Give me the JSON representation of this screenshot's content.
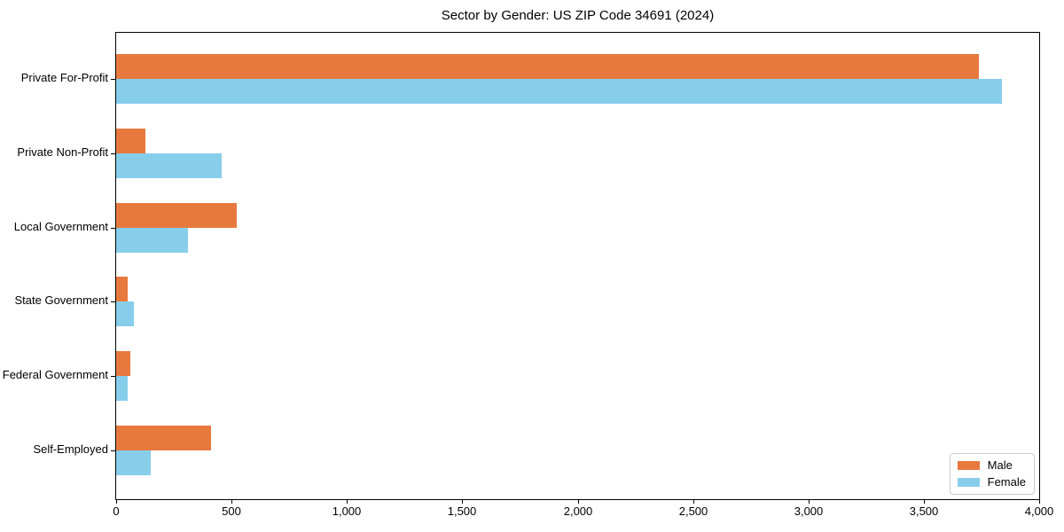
{
  "chart_data": {
    "type": "bar",
    "orientation": "horizontal",
    "title": "Sector by Gender: US ZIP Code 34691 (2024)",
    "categories": [
      "Private For-Profit",
      "Private Non-Profit",
      "Local Government",
      "State Government",
      "Federal Government",
      "Self-Employed"
    ],
    "series": [
      {
        "name": "Male",
        "color": "#e8793e",
        "values": [
          3730,
          125,
          520,
          50,
          60,
          410
        ]
      },
      {
        "name": "Female",
        "color": "#87ceeb",
        "values": [
          3830,
          455,
          310,
          75,
          50,
          150
        ]
      }
    ],
    "xlabel": "",
    "ylabel": "",
    "xlim": [
      0,
      4000
    ],
    "x_ticks": [
      0,
      500,
      1000,
      1500,
      2000,
      2500,
      3000,
      3500,
      4000
    ],
    "x_tick_labels": [
      "0",
      "500",
      "1,000",
      "1,500",
      "2,000",
      "2,500",
      "3,000",
      "3,500",
      "4,000"
    ],
    "grid": false,
    "legend_position": "lower right",
    "colors": {
      "male": "#e8793e",
      "female": "#87ceeb",
      "axis": "#000000",
      "legend_border": "#cccccc",
      "background": "#ffffff"
    }
  }
}
